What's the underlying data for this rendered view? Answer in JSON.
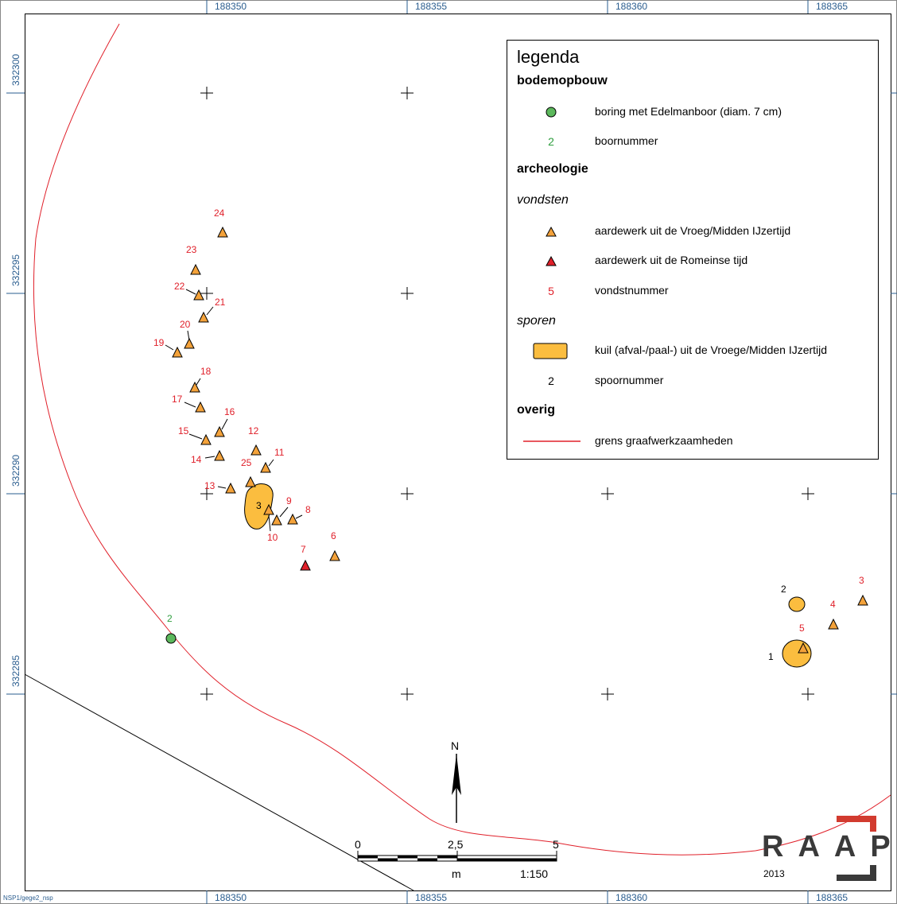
{
  "grid": {
    "x_labels": [
      "188350",
      "188355",
      "188360",
      "188365"
    ],
    "y_labels": [
      "332300",
      "332295",
      "332290",
      "332285"
    ]
  },
  "legend": {
    "title": "legenda",
    "sections": {
      "bodemopbouw": "bodemopbouw",
      "archeologie": "archeologie",
      "vondsten": "vondsten",
      "sporen": "sporen",
      "overig": "overig"
    },
    "items": {
      "boring": "boring met Edelmanboor (diam. 7 cm)",
      "boornummer_sym": "2",
      "boornummer": "boornummer",
      "ijzertijd": "aardewerk uit de Vroeg/Midden IJzertijd",
      "romeins": "aardewerk uit de Romeinse tijd",
      "vondstnummer_sym": "5",
      "vondstnummer": "vondstnummer",
      "kuil": "kuil (afval-/paal-) uit de Vroege/Midden IJzertijd",
      "spoornummer_sym": "2",
      "spoornummer": "spoornummer",
      "grens": "grens graafwerkzaamheden"
    }
  },
  "colors": {
    "boundary": "#e0202a",
    "find_iron_age": "#f4a23a",
    "find_roman": "#e0202a",
    "feature_fill": "#fbbd3f",
    "boring": "#5cb85c",
    "grid_text": "#2a5d8f"
  },
  "finds": [
    {
      "n": "3",
      "type": "ijzertijd"
    },
    {
      "n": "4",
      "type": "ijzertijd"
    },
    {
      "n": "5",
      "type": "ijzertijd"
    },
    {
      "n": "6",
      "type": "ijzertijd"
    },
    {
      "n": "7",
      "type": "romeins"
    },
    {
      "n": "8",
      "type": "ijzertijd"
    },
    {
      "n": "9",
      "type": "ijzertijd"
    },
    {
      "n": "10",
      "type": "ijzertijd"
    },
    {
      "n": "11",
      "type": "ijzertijd"
    },
    {
      "n": "12",
      "type": "ijzertijd"
    },
    {
      "n": "13",
      "type": "ijzertijd"
    },
    {
      "n": "14",
      "type": "ijzertijd"
    },
    {
      "n": "15",
      "type": "ijzertijd"
    },
    {
      "n": "16",
      "type": "ijzertijd"
    },
    {
      "n": "17",
      "type": "ijzertijd"
    },
    {
      "n": "18",
      "type": "ijzertijd"
    },
    {
      "n": "19",
      "type": "ijzertijd"
    },
    {
      "n": "20",
      "type": "ijzertijd"
    },
    {
      "n": "21",
      "type": "ijzertijd"
    },
    {
      "n": "22",
      "type": "ijzertijd"
    },
    {
      "n": "23",
      "type": "ijzertijd"
    },
    {
      "n": "24",
      "type": "ijzertijd"
    },
    {
      "n": "25",
      "type": "ijzertijd"
    }
  ],
  "features": [
    "1",
    "2",
    "3"
  ],
  "borings": [
    "2"
  ],
  "north_label": "N",
  "scale": {
    "tick0": "0",
    "tick1": "2,5",
    "tick2": "5",
    "unit": "m",
    "ratio": "1:150"
  },
  "logo": {
    "letters": "RAAP",
    "year": "2013"
  },
  "footer": "NSP1/gege2_nsp"
}
